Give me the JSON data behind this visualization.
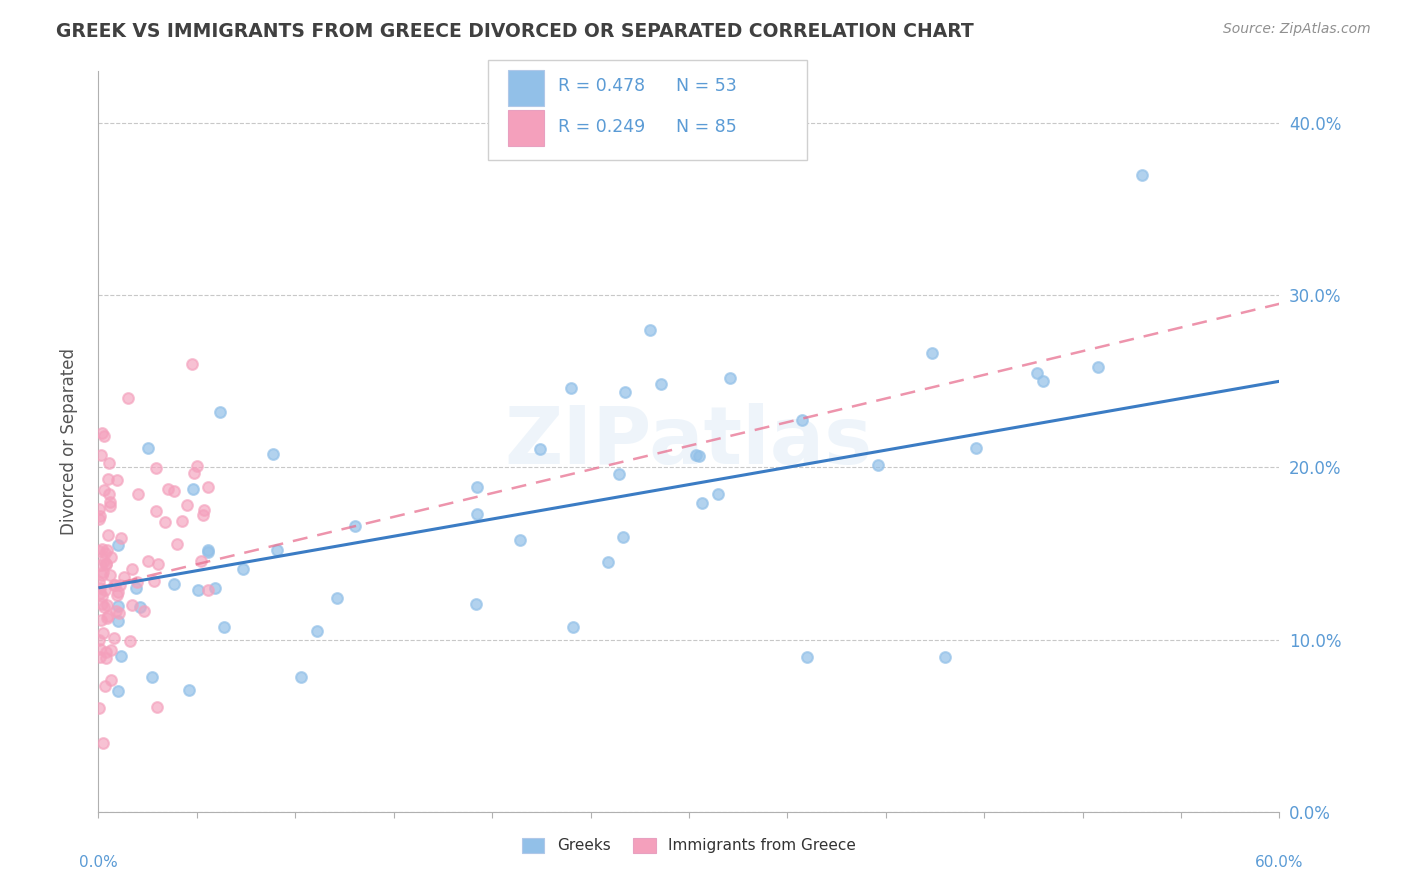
{
  "title": "GREEK VS IMMIGRANTS FROM GREECE DIVORCED OR SEPARATED CORRELATION CHART",
  "source": "Source: ZipAtlas.com",
  "ylabel": "Divorced or Separated",
  "xlim": [
    0,
    0.6
  ],
  "ylim": [
    0.0,
    0.43
  ],
  "watermark": "ZIPatlas",
  "legend_r1": "R = 0.478",
  "legend_n1": "N = 53",
  "legend_r2": "R = 0.249",
  "legend_n2": "N = 85",
  "color_greek": "#92C0E8",
  "color_immigrant": "#F4A0BC",
  "color_greek_line": "#3B7CC4",
  "color_immigrant_line": "#E87090",
  "title_color": "#404040",
  "axis_color": "#5B9BD5",
  "ytick_labels": [
    "0.0%",
    "10.0%",
    "20.0%",
    "30.0%",
    "40.0%"
  ],
  "ytick_vals": [
    0.0,
    0.1,
    0.2,
    0.3,
    0.4
  ],
  "greek_trend_y0": 0.13,
  "greek_trend_y1": 0.25,
  "imm_trend_y0": 0.13,
  "imm_trend_y1": 0.295
}
